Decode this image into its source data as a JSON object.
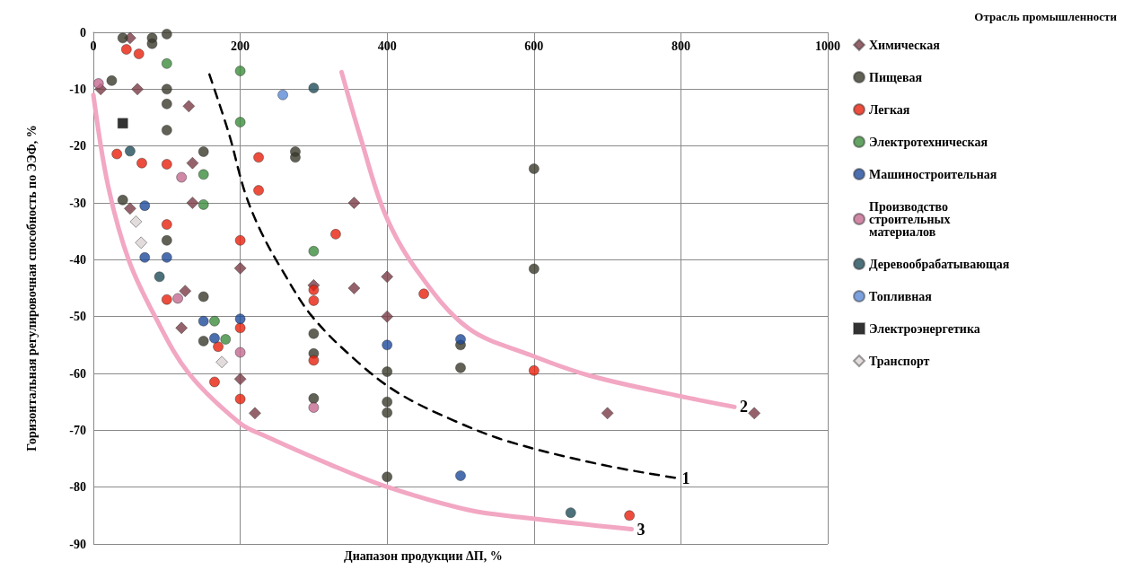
{
  "chart_data": {
    "type": "scatter",
    "xlabel": "Диапазон продукции ΔП, %",
    "ylabel": "Горизонтальная регулировочная способность по ЭЭФ, %",
    "legend_title": "Отрасль промышленности",
    "xlim": [
      0,
      1000
    ],
    "xticks": [
      0,
      200,
      400,
      600,
      800,
      1000
    ],
    "ylim": [
      -90,
      0
    ],
    "yticks": [
      -90,
      -80,
      -70,
      -60,
      -50,
      -40,
      -30,
      -20,
      -10,
      0
    ],
    "grid": true,
    "legend": "right",
    "marker": "circle",
    "series": [
      {
        "name": "Химическая",
        "color": "#7b3b46",
        "marker": "diamond",
        "x": [
          50,
          10,
          60,
          130,
          135,
          135,
          50,
          125,
          120,
          200,
          200,
          220,
          355,
          400,
          355,
          400,
          300,
          700,
          900
        ],
        "values": [
          -1,
          -10,
          -10,
          -13,
          -23,
          -30,
          -31,
          -45.5,
          -52,
          -41.5,
          -61,
          -67,
          -30,
          -43,
          -45,
          -50,
          -44.5,
          -67,
          -67
        ]
      },
      {
        "name": "Пищевая",
        "color": "#3a3a2c",
        "x": [
          40,
          80,
          80,
          100,
          25,
          100,
          100,
          100,
          150,
          40,
          100,
          150,
          150,
          275,
          275,
          300,
          300,
          300,
          400,
          400,
          400,
          400,
          500,
          500,
          600,
          600
        ],
        "values": [
          -1,
          -1,
          -2,
          -0.3,
          -8.5,
          -10,
          -12.6,
          -17.2,
          -21,
          -29.5,
          -36.6,
          -46.5,
          -54.3,
          -21,
          -22,
          -53,
          -56.5,
          -64.4,
          -59.7,
          -65,
          -66.9,
          -78.2,
          -59,
          -55,
          -24,
          -41.6
        ]
      },
      {
        "name": "Легкая",
        "color": "#e8200c",
        "x": [
          45,
          62,
          32,
          66,
          100,
          100,
          200,
          225,
          225,
          100,
          200,
          170,
          165,
          200,
          330,
          300,
          300,
          300,
          450,
          600,
          730
        ],
        "values": [
          -3,
          -3.8,
          -21.4,
          -23,
          -23.2,
          -33.8,
          -36.6,
          -22,
          -27.8,
          -47,
          -52,
          -55.3,
          -61.5,
          -64.5,
          -35.5,
          -45.3,
          -47.2,
          -57.7,
          -46,
          -59.5,
          -85
        ]
      },
      {
        "name": "Электротехническая",
        "color": "#3c8c3c",
        "x": [
          100,
          200,
          200,
          150,
          150,
          165,
          180,
          300
        ],
        "values": [
          -5.5,
          -6.8,
          -15.8,
          -25,
          -30.3,
          -50.8,
          -54,
          -38.5
        ]
      },
      {
        "name": "Машиностроительная",
        "color": "#1e4a9a",
        "x": [
          70,
          70,
          100,
          150,
          200,
          165,
          400,
          500,
          500
        ],
        "values": [
          -30.5,
          -39.6,
          -39.6,
          -50.8,
          -50.4,
          -53.8,
          -55,
          -54,
          -78
        ]
      },
      {
        "name": "Производство строительных материалов",
        "color": "#c46a90",
        "x": [
          7,
          120,
          115,
          200,
          300
        ],
        "values": [
          -9,
          -25.5,
          -46.8,
          -56.3,
          -66
        ]
      },
      {
        "name": "Деревообрабатывающая",
        "color": "#1f4d5a",
        "x": [
          50,
          90,
          300,
          650
        ],
        "values": [
          -20.9,
          -43,
          -9.8,
          -84.5
        ]
      },
      {
        "name": "Топливная",
        "color": "#5a8ad6",
        "x": [
          258
        ],
        "values": [
          -11
        ]
      },
      {
        "name": "Электроэнергетика",
        "color": "#000000",
        "marker": "square",
        "x": [
          40
        ],
        "values": [
          -16
        ]
      },
      {
        "name": "Транспорт",
        "color": "#dcd3d3",
        "marker": "diamond",
        "x": [
          58,
          65,
          175
        ],
        "values": [
          -33.3,
          -37,
          -58
        ]
      },
      {
        "name": "1",
        "type": "line",
        "marker": "none",
        "color": "#000000",
        "line_style": "dashed",
        "x": [
          158,
          185,
          206,
          228,
          256,
          298,
          360,
          416,
          491,
          566,
          690,
          794
        ],
        "values": [
          -7.4,
          -18,
          -28,
          -35,
          -41.6,
          -50,
          -58,
          -63.5,
          -68.3,
          -72,
          -76,
          -78.4
        ]
      },
      {
        "name": "2",
        "type": "line",
        "marker": "none",
        "color": "#f2a7c3",
        "line_style": "solid",
        "x": [
          338,
          364,
          397,
          439,
          510,
          596,
          676,
          799,
          873
        ],
        "values": [
          -7,
          -18.6,
          -31.9,
          -41.6,
          -52,
          -56.8,
          -60.4,
          -64,
          -65.9
        ]
      },
      {
        "name": "3",
        "type": "line",
        "marker": "none",
        "color": "#f2a7c3",
        "line_style": "solid",
        "x": [
          0,
          20,
          48,
          84,
          130,
          200,
          234,
          322,
          401,
          510,
          582,
          733
        ],
        "values": [
          -11,
          -27,
          -40,
          -50,
          -60,
          -68.8,
          -71,
          -76,
          -80,
          -84,
          -85.3,
          -87.4
        ]
      }
    ]
  }
}
